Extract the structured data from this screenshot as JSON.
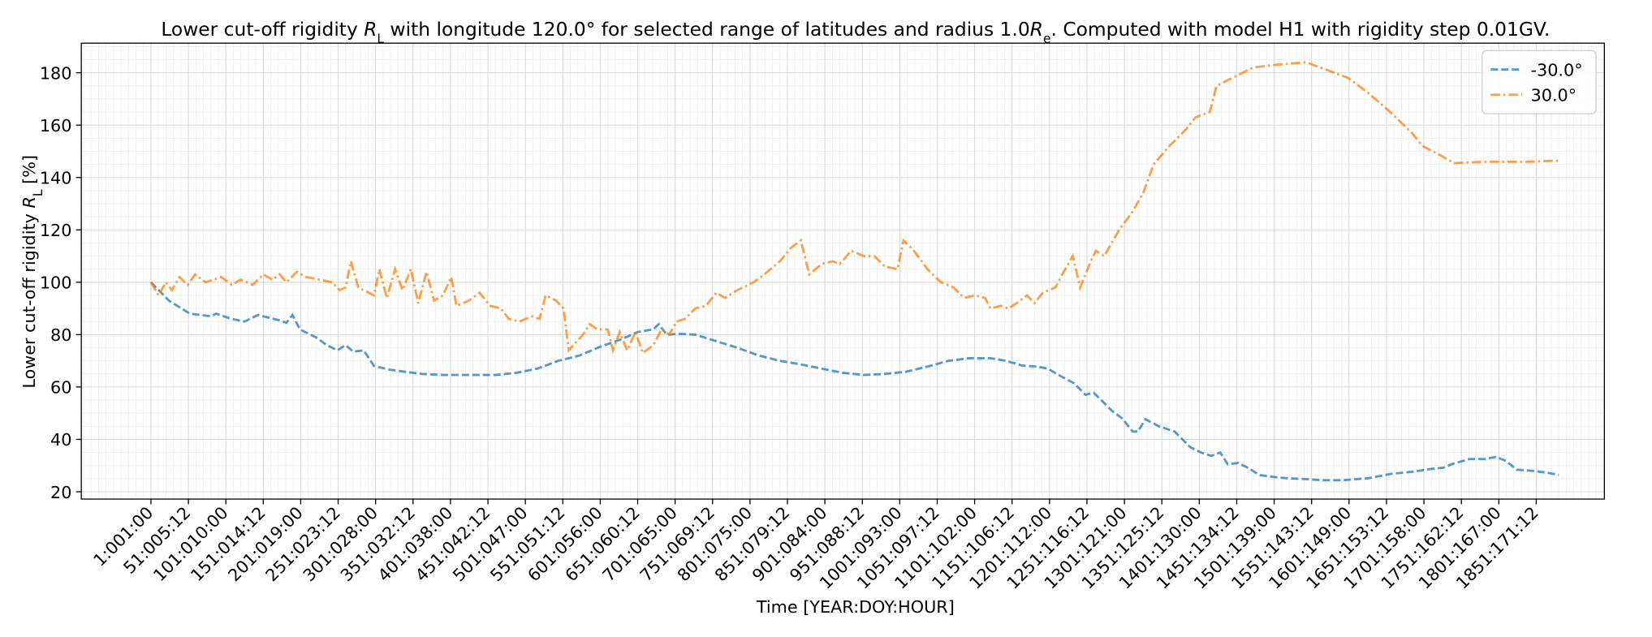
{
  "chart_data": {
    "type": "line",
    "title": [
      "Lower cut-off rigidity ",
      "R",
      "L",
      " with longitude 120.0° for selected range of latitudes and radius 1.0",
      "R",
      "e",
      ". Computed with model H1 with rigidity step 0.01GV."
    ],
    "xlabel": "Time [YEAR:DOY:HOUR]",
    "ylabel": [
      "Lower cut-off rigidity ",
      "R",
      "L",
      " [%]"
    ],
    "xlim": [
      -92,
      1942
    ],
    "ylim": [
      17.2,
      191.3
    ],
    "yticks": [
      20,
      40,
      60,
      80,
      100,
      120,
      140,
      160,
      180
    ],
    "xticks": [
      {
        "value": 1,
        "label": "1:001:00"
      },
      {
        "value": 51,
        "label": "51:005:12"
      },
      {
        "value": 101,
        "label": "101:010:00"
      },
      {
        "value": 151,
        "label": "151:014:12"
      },
      {
        "value": 201,
        "label": "201:019:00"
      },
      {
        "value": 251,
        "label": "251:023:12"
      },
      {
        "value": 301,
        "label": "301:028:00"
      },
      {
        "value": 351,
        "label": "351:032:12"
      },
      {
        "value": 401,
        "label": "401:038:00"
      },
      {
        "value": 451,
        "label": "451:042:12"
      },
      {
        "value": 501,
        "label": "501:047:00"
      },
      {
        "value": 551,
        "label": "551:051:12"
      },
      {
        "value": 601,
        "label": "601:056:00"
      },
      {
        "value": 651,
        "label": "651:060:12"
      },
      {
        "value": 701,
        "label": "701:065:00"
      },
      {
        "value": 751,
        "label": "751:069:12"
      },
      {
        "value": 801,
        "label": "801:075:00"
      },
      {
        "value": 851,
        "label": "851:079:12"
      },
      {
        "value": 901,
        "label": "901:084:00"
      },
      {
        "value": 951,
        "label": "951:088:12"
      },
      {
        "value": 1001,
        "label": "1001:093:00"
      },
      {
        "value": 1051,
        "label": "1051:097:12"
      },
      {
        "value": 1101,
        "label": "1101:102:00"
      },
      {
        "value": 1151,
        "label": "1151:106:12"
      },
      {
        "value": 1201,
        "label": "1201:112:00"
      },
      {
        "value": 1251,
        "label": "1251:116:12"
      },
      {
        "value": 1301,
        "label": "1301:121:00"
      },
      {
        "value": 1351,
        "label": "1351:125:12"
      },
      {
        "value": 1401,
        "label": "1401:130:00"
      },
      {
        "value": 1451,
        "label": "1451:134:12"
      },
      {
        "value": 1501,
        "label": "1501:139:00"
      },
      {
        "value": 1551,
        "label": "1551:143:12"
      },
      {
        "value": 1601,
        "label": "1601:149:00"
      },
      {
        "value": 1651,
        "label": "1651:153:12"
      },
      {
        "value": 1701,
        "label": "1701:158:00"
      },
      {
        "value": 1751,
        "label": "1751:162:12"
      },
      {
        "value": 1801,
        "label": "1801:167:00"
      },
      {
        "value": 1851,
        "label": "1851:171:12"
      }
    ],
    "grid": true,
    "minor_grid": true,
    "legend": "upper right",
    "series": [
      {
        "name": "-30.0°",
        "color": "#1f77b4",
        "linestyle": "dashed",
        "x": [
          1,
          25,
          53,
          81,
          88,
          109,
          126,
          144,
          172,
          182,
          190,
          200,
          221,
          236,
          250,
          261,
          271,
          285,
          299,
          320,
          362,
          391,
          433,
          461,
          489,
          517,
          545,
          573,
          602,
          630,
          651,
          672,
          679,
          690,
          707,
          728,
          756,
          784,
          813,
          841,
          869,
          897,
          925,
          953,
          981,
          1009,
          1038,
          1066,
          1094,
          1122,
          1143,
          1164,
          1185,
          1199,
          1213,
          1234,
          1249,
          1260,
          1270,
          1284,
          1298,
          1312,
          1319,
          1329,
          1347,
          1368,
          1389,
          1403,
          1417,
          1429,
          1439,
          1453,
          1467,
          1481,
          1502,
          1516,
          1544,
          1565,
          1593,
          1628,
          1656,
          1685,
          1713,
          1727,
          1741,
          1762,
          1783,
          1797,
          1811,
          1825,
          1846,
          1867,
          1881
        ],
        "values": [
          100,
          93,
          88,
          87,
          88,
          86,
          85,
          87.5,
          85.5,
          84.5,
          87.5,
          82,
          79,
          76,
          74,
          76,
          73.5,
          74,
          68,
          66.6,
          65,
          64.6,
          64.6,
          64.6,
          65.4,
          67,
          70,
          72,
          75.5,
          78.3,
          81,
          82,
          84,
          80,
          80.3,
          80,
          77.5,
          75,
          72,
          70,
          68.6,
          67,
          65.4,
          64.6,
          65,
          65.8,
          67.8,
          70,
          71,
          71,
          70,
          68.2,
          67.8,
          67,
          64.6,
          61.4,
          57,
          57.8,
          55,
          51,
          48,
          43,
          43,
          47.7,
          45,
          43,
          37,
          35,
          33.7,
          35,
          30.5,
          31,
          29,
          26.4,
          25.6,
          25.2,
          24.8,
          24.4,
          24.4,
          25.2,
          26.8,
          27.6,
          28.8,
          29.2,
          30.8,
          32.5,
          32.5,
          33.3,
          31.7,
          28.4,
          28,
          27.2,
          26.4
        ]
      },
      {
        "name": "30.0°",
        "color": "#ff7f0e",
        "linestyle": "dashdot",
        "x": [
          1,
          11,
          21,
          29,
          39,
          50,
          60,
          74,
          95,
          109,
          121,
          137,
          151,
          163,
          173,
          182,
          196,
          208,
          226,
          243,
          253,
          261,
          268,
          278,
          299,
          306,
          316,
          327,
          337,
          348,
          358,
          369,
          379,
          391,
          402,
          409,
          426,
          440,
          454,
          468,
          479,
          493,
          510,
          520,
          528,
          542,
          552,
          559,
          578,
          587,
          597,
          611,
          618,
          627,
          637,
          648,
          658,
          672,
          683,
          693,
          703,
          714,
          728,
          742,
          756,
          768,
          784,
          806,
          820,
          841,
          855,
          869,
          880,
          897,
          911,
          921,
          936,
          953,
          967,
          981,
          998,
          1006,
          1020,
          1038,
          1056,
          1073,
          1087,
          1101,
          1115,
          1122,
          1136,
          1146,
          1157,
          1171,
          1181,
          1192,
          1209,
          1218,
          1232,
          1242,
          1256,
          1263,
          1274,
          1294,
          1312,
          1326,
          1340,
          1361,
          1382,
          1396,
          1415,
          1424,
          1445,
          1473,
          1502,
          1544,
          1572,
          1600,
          1628,
          1656,
          1685,
          1699,
          1720,
          1741,
          1783,
          1839,
          1884
        ],
        "values": [
          100,
          95,
          100,
          97,
          102,
          99,
          103,
          100,
          102,
          99,
          101,
          99,
          103,
          101,
          103,
          100,
          104,
          102,
          101,
          100,
          97,
          98,
          108,
          98,
          95,
          105,
          94,
          105,
          97,
          105,
          92,
          104,
          93,
          95,
          102,
          91,
          93,
          96,
          91,
          90,
          86,
          85,
          87,
          86,
          95,
          93,
          90,
          74,
          80,
          84,
          82,
          82,
          74,
          81,
          74,
          81,
          73,
          76,
          82,
          80,
          85,
          86,
          90,
          91,
          96,
          94,
          97,
          100,
          103,
          108,
          113,
          116,
          103,
          107,
          108,
          107,
          112,
          110,
          110,
          106,
          105,
          116,
          112,
          105,
          100,
          98,
          94,
          95,
          94,
          90,
          91,
          90,
          92,
          95,
          92,
          96,
          98,
          103,
          110,
          98,
          108,
          112,
          110,
          120,
          127,
          134,
          145,
          152,
          158,
          163,
          165,
          175,
          178,
          182,
          183,
          184,
          181,
          178,
          172,
          165,
          157,
          152,
          149,
          145.5,
          146,
          146,
          146.5
        ]
      }
    ]
  }
}
